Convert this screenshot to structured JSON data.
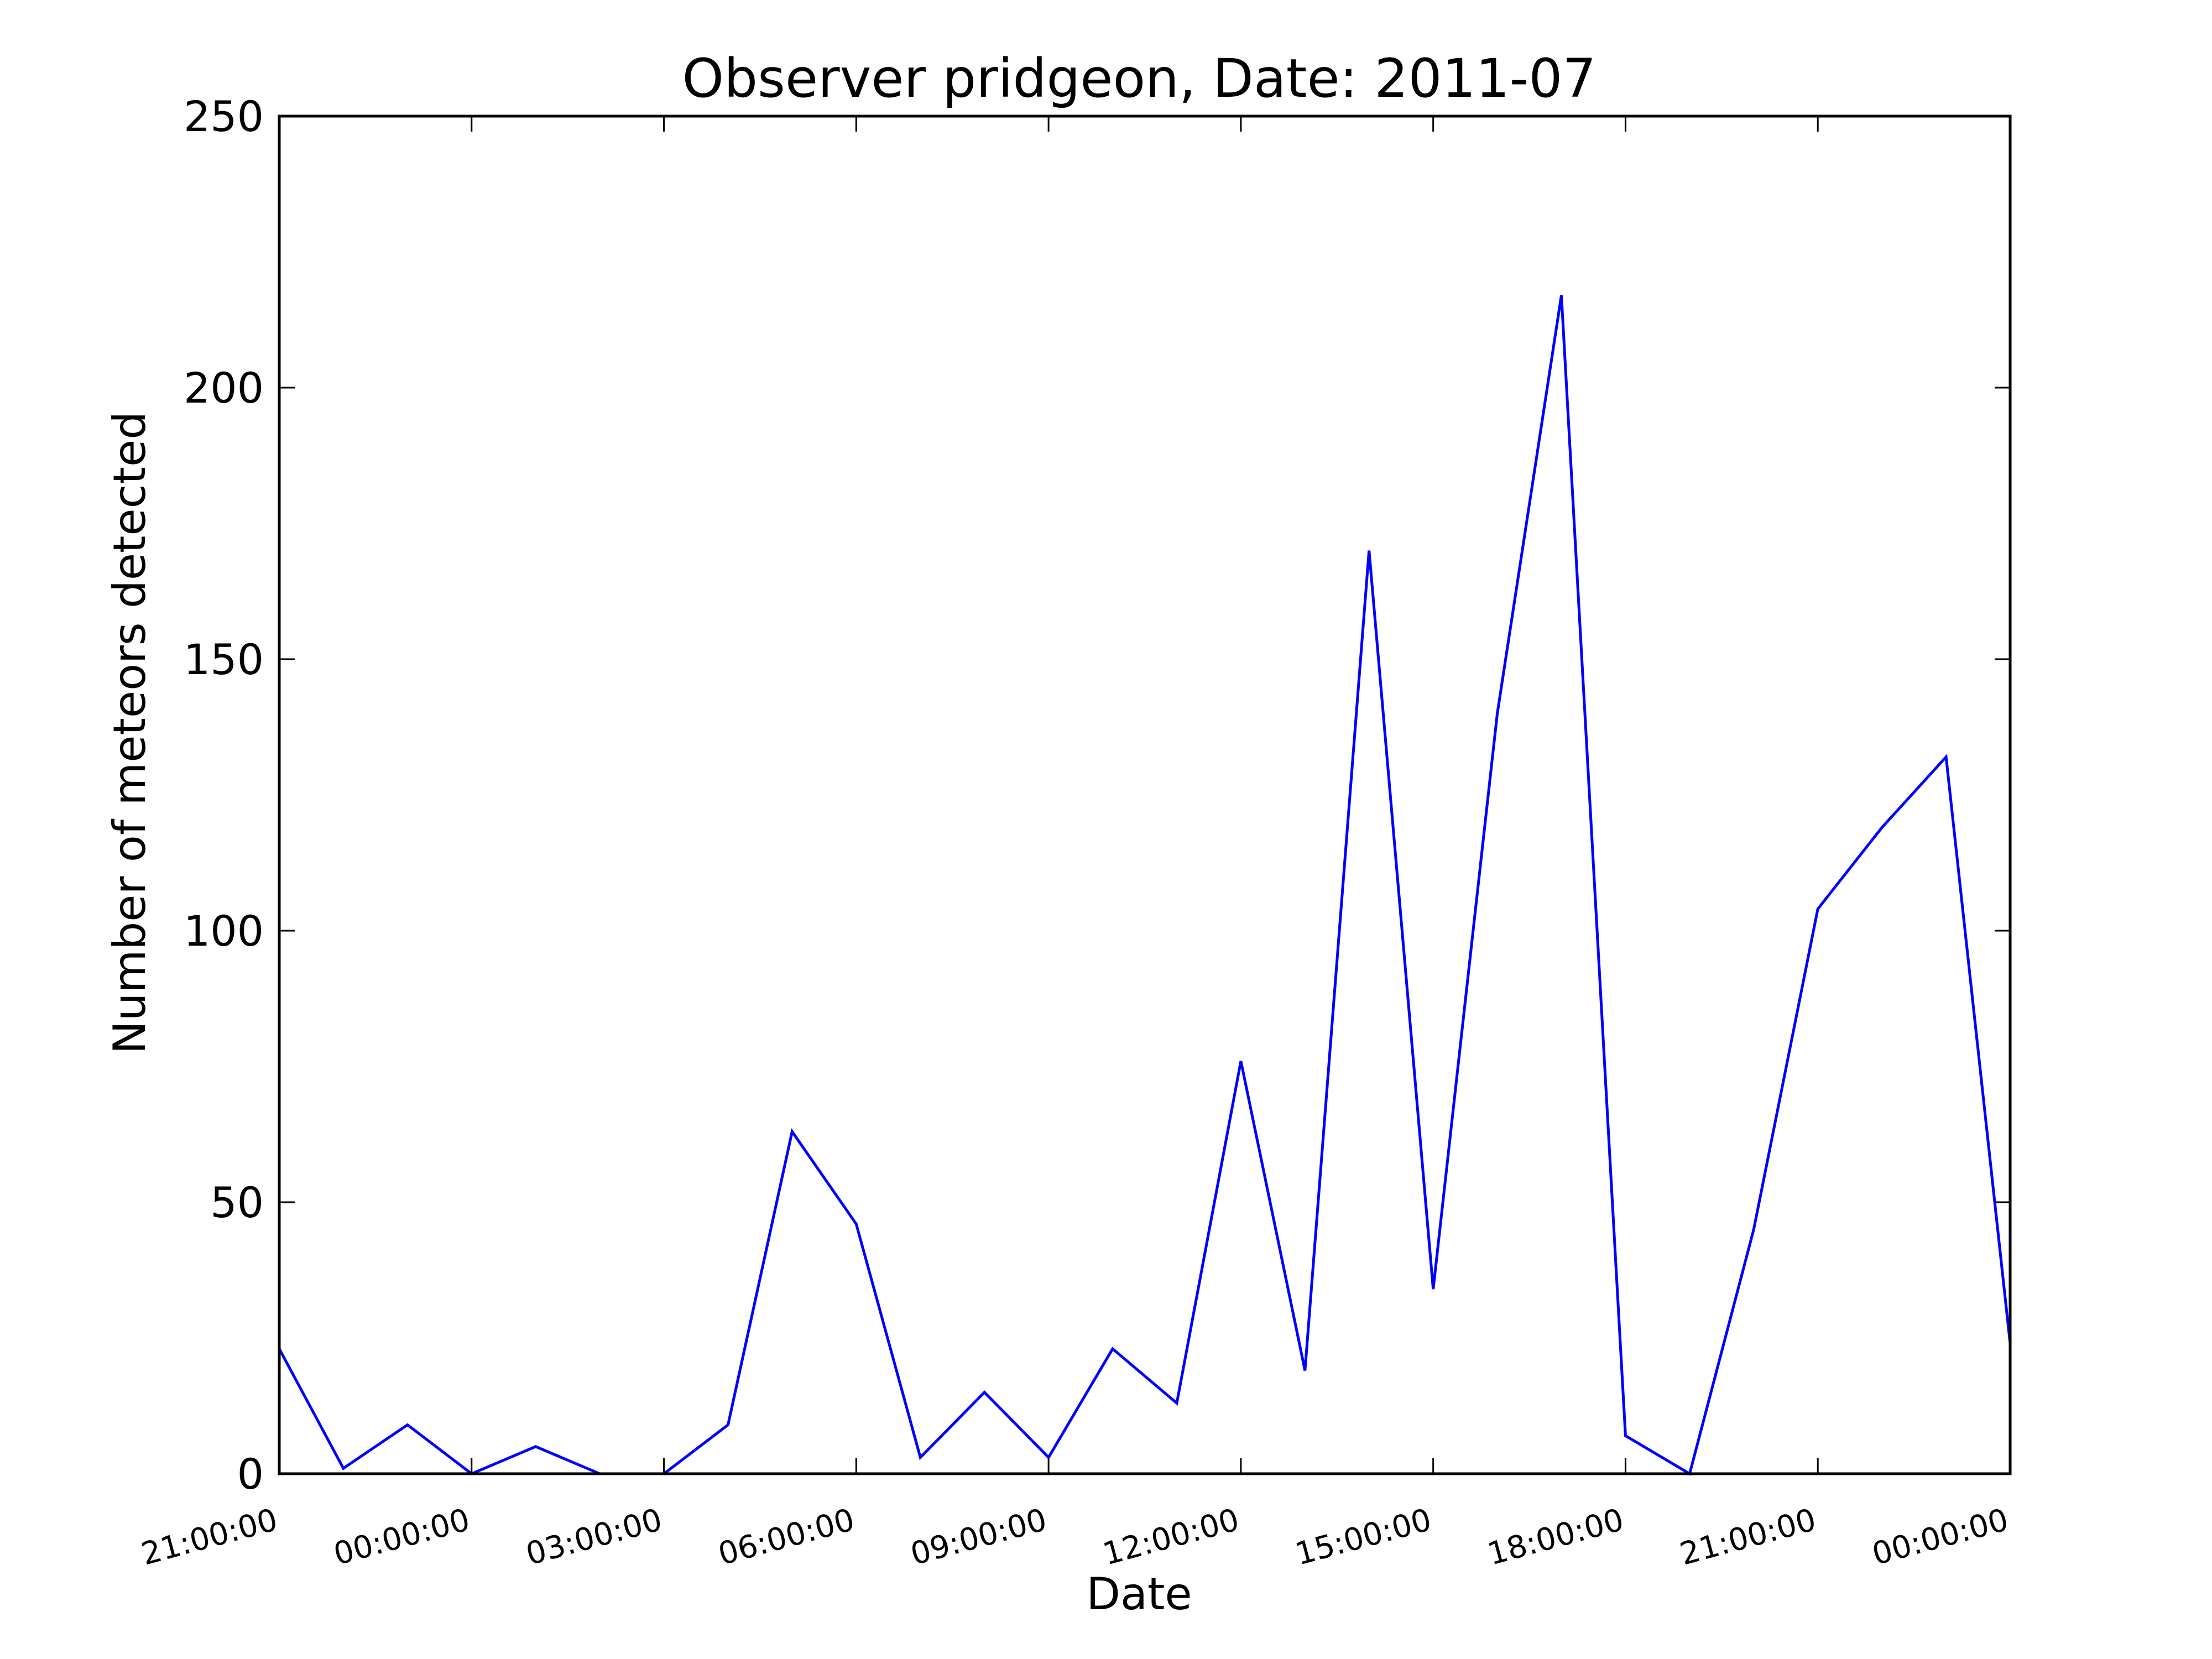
{
  "chart_data": {
    "type": "line",
    "title": "Observer pridgeon, Date: 2011-07",
    "xlabel": "Date",
    "ylabel": "Number of meteors detected",
    "ylim": [
      0,
      250
    ],
    "yticks": [
      0,
      50,
      100,
      150,
      200,
      250
    ],
    "ytick_labels": [
      "0",
      "50",
      "100",
      "150",
      "200",
      "250"
    ],
    "xlim": [
      "21:00:00",
      "00:00:00"
    ],
    "xtick_labels": [
      "21:00:00",
      "00:00:00",
      "03:00:00",
      "06:00:00",
      "09:00:00",
      "12:00:00",
      "15:00:00",
      "18:00:00",
      "21:00:00",
      "00:00:00"
    ],
    "grid": false,
    "legend": "none",
    "series": [
      {
        "color": "#0000ff",
        "x": [
          "21:00:00",
          "22:00:00",
          "23:00:00",
          "00:00:00",
          "01:00:00",
          "02:00:00",
          "03:00:00",
          "04:00:00",
          "05:00:00",
          "06:00:00",
          "07:00:00",
          "08:00:00",
          "09:00:00",
          "10:00:00",
          "11:00:00",
          "12:00:00",
          "13:00:00",
          "14:00:00",
          "15:00:00",
          "16:00:00",
          "17:00:00",
          "18:00:00",
          "19:00:00",
          "20:00:00",
          "21:00:00",
          "22:00:00",
          "23:00:00",
          "00:00:00"
        ],
        "values": [
          23,
          1,
          9,
          0,
          5,
          0,
          0,
          9,
          63,
          46,
          3,
          15,
          3,
          23,
          13,
          76,
          19,
          170,
          34,
          140,
          217,
          7,
          0,
          45,
          104,
          119,
          132,
          24
        ]
      }
    ]
  }
}
